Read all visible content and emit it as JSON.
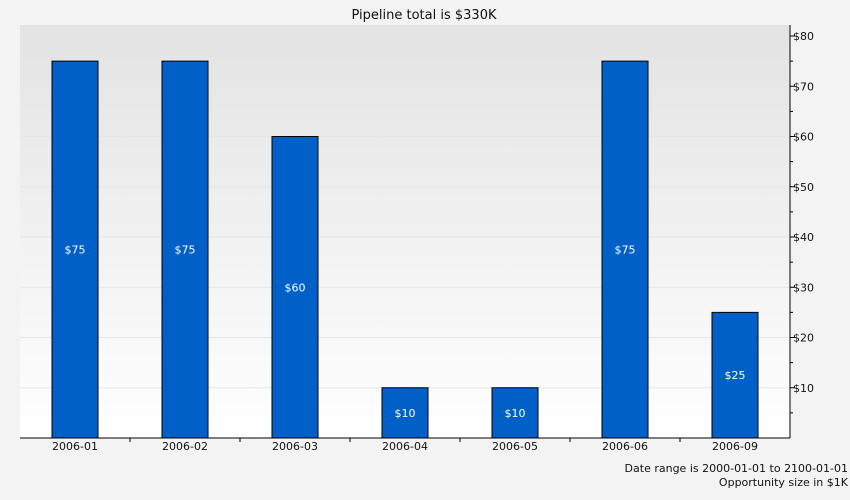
{
  "chart_data": {
    "type": "bar",
    "title": "Pipeline total is $330K",
    "categories": [
      "2006-01",
      "2006-02",
      "2006-03",
      "2006-04",
      "2006-05",
      "2006-06",
      "2006-09"
    ],
    "values": [
      75,
      75,
      60,
      10,
      10,
      75,
      25
    ],
    "value_labels": [
      "$75",
      "$75",
      "$60",
      "$10",
      "$10",
      "$75",
      "$25"
    ],
    "ylim": [
      0,
      80
    ],
    "yticks": [
      10,
      20,
      30,
      40,
      50,
      60,
      70,
      80
    ],
    "ytick_labels": [
      "$10",
      "$20",
      "$30",
      "$40",
      "$50",
      "$60",
      "$70",
      "$80"
    ],
    "y_axis_side": "right",
    "grid": true,
    "bar_color": "#0060c8",
    "xlabel": "",
    "ylabel": ""
  },
  "footer": {
    "date_range": "Date range is 2000-01-01 to 2100-01-01",
    "size_note": "Opportunity size in $1K"
  }
}
